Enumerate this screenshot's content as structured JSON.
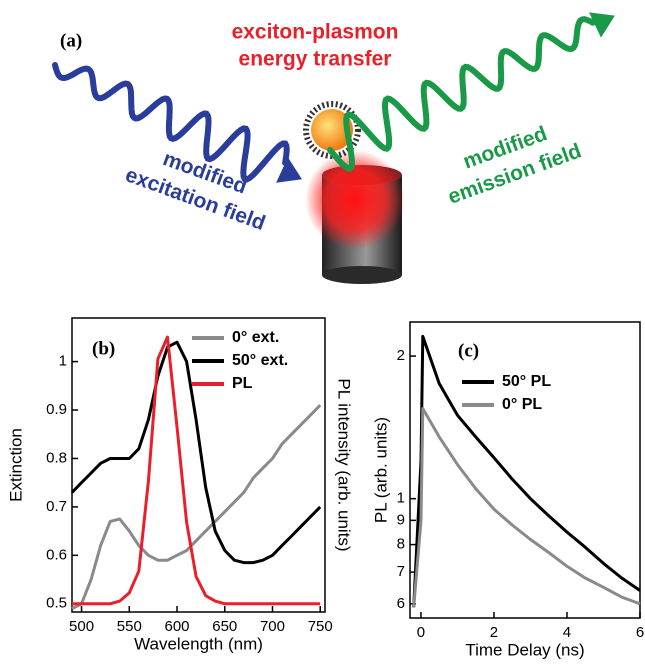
{
  "panel_a": {
    "panel_label": "(a)",
    "transfer_label": [
      "exciton-plasmon",
      "energy transfer"
    ],
    "excitation_label": [
      "modified",
      "excitation field"
    ],
    "emission_label": [
      "modified",
      "emission field"
    ]
  },
  "chart_data": [
    {
      "type": "line",
      "panel_label": "(b)",
      "x_label": "Wavelength (nm)",
      "y_label": "Extinction",
      "y2_label": "PL intensity (arb. units)",
      "xlim": [
        490,
        755
      ],
      "xticks": [
        500,
        550,
        600,
        650,
        700,
        750
      ],
      "ylim": [
        0.483,
        1.09
      ],
      "yticks": [
        0.5,
        0.6,
        0.7,
        0.8,
        0.9,
        1.0
      ],
      "y2lim": [
        -0.03,
        1.05
      ],
      "legend": "upper right",
      "x": [
        490,
        500,
        510,
        520,
        530,
        540,
        550,
        560,
        570,
        580,
        590,
        600,
        610,
        620,
        630,
        640,
        650,
        660,
        670,
        680,
        690,
        700,
        710,
        720,
        730,
        740,
        750
      ],
      "series": [
        {
          "name": "0° ext.",
          "color": "#8a8a8a",
          "values": [
            0.49,
            0.5,
            0.55,
            0.62,
            0.67,
            0.675,
            0.65,
            0.62,
            0.6,
            0.59,
            0.59,
            0.6,
            0.61,
            0.63,
            0.65,
            0.67,
            0.69,
            0.71,
            0.73,
            0.76,
            0.78,
            0.8,
            0.83,
            0.85,
            0.87,
            0.89,
            0.91
          ]
        },
        {
          "name": "50° ext.",
          "color": "#000000",
          "values": [
            0.73,
            0.75,
            0.77,
            0.79,
            0.8,
            0.8,
            0.8,
            0.82,
            0.88,
            0.97,
            1.03,
            1.04,
            1.0,
            0.88,
            0.74,
            0.65,
            0.61,
            0.59,
            0.585,
            0.585,
            0.59,
            0.6,
            0.62,
            0.64,
            0.66,
            0.68,
            0.7
          ]
        },
        {
          "name": "PL",
          "color": "#e8202a",
          "axis": "y2",
          "values": [
            0,
            0,
            0,
            0,
            0,
            0.01,
            0.04,
            0.12,
            0.45,
            0.9,
            0.98,
            0.65,
            0.3,
            0.1,
            0.03,
            0.01,
            0,
            0,
            0,
            0,
            0,
            0,
            0,
            0,
            0,
            0,
            0
          ]
        }
      ]
    },
    {
      "type": "line",
      "panel_label": "(c)",
      "x_label": "Time Delay (ns)",
      "y_label": "PL (arb. units)",
      "xlim": [
        -0.3,
        6
      ],
      "xticks": [
        0,
        2,
        4,
        6
      ],
      "ylim": [
        0.56,
        2.36
      ],
      "log_y": true,
      "yticks": [
        2,
        1,
        {
          "value": 0.9,
          "label": "9"
        },
        {
          "value": 0.8,
          "label": "8"
        },
        {
          "value": 0.7,
          "label": "7"
        },
        {
          "value": 0.6,
          "label": "6"
        }
      ],
      "legend": "upper right",
      "x": [
        -0.2,
        0,
        0.05,
        0.5,
        1,
        1.5,
        2,
        2.5,
        3,
        3.5,
        4,
        4.5,
        5,
        5.5,
        6
      ],
      "series": [
        {
          "name": "50° PL",
          "color": "#000000",
          "values": [
            0.59,
            1.2,
            2.2,
            1.75,
            1.5,
            1.35,
            1.22,
            1.1,
            1.0,
            0.92,
            0.85,
            0.79,
            0.73,
            0.68,
            0.64
          ]
        },
        {
          "name": "0° PL",
          "color": "#8a8a8a",
          "values": [
            0.59,
            0.9,
            1.55,
            1.35,
            1.18,
            1.05,
            0.95,
            0.88,
            0.82,
            0.77,
            0.72,
            0.68,
            0.65,
            0.62,
            0.6
          ]
        }
      ]
    }
  ]
}
